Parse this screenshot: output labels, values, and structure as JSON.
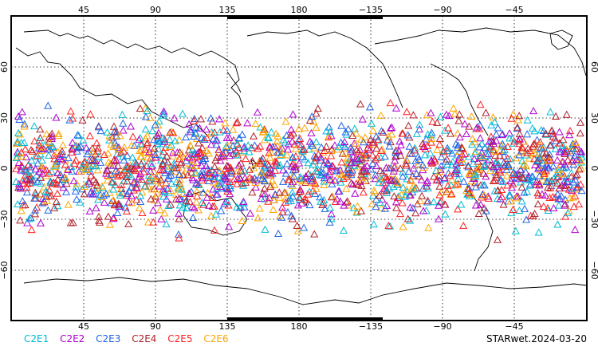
{
  "map": {
    "top_lon_ticks": [
      "45",
      "90",
      "135",
      "180",
      "−135",
      "−90",
      "−45"
    ],
    "bottom_lon_ticks": [
      "45",
      "90",
      "135",
      "180",
      "−135",
      "−90",
      "−45"
    ],
    "lat_ticks": [
      "60",
      "30",
      "0",
      "−30",
      "−60"
    ],
    "lat_ticks_right": [
      "60",
      "30",
      "0",
      "−30",
      "−60"
    ],
    "marker_symbol": "triangle-outline",
    "lat_band": [
      -45,
      45
    ]
  },
  "legend": {
    "items": [
      {
        "label": "C2E1",
        "color": "#00bcd4"
      },
      {
        "label": "C2E2",
        "color": "#b000d0"
      },
      {
        "label": "C2E3",
        "color": "#1e64e6"
      },
      {
        "label": "C2E4",
        "color": "#b0202a"
      },
      {
        "label": "C2E5",
        "color": "#ff2020"
      },
      {
        "label": "C2E6",
        "color": "#ffa500"
      }
    ]
  },
  "footer": {
    "product_date": "STARwet.2024-03-20"
  }
}
